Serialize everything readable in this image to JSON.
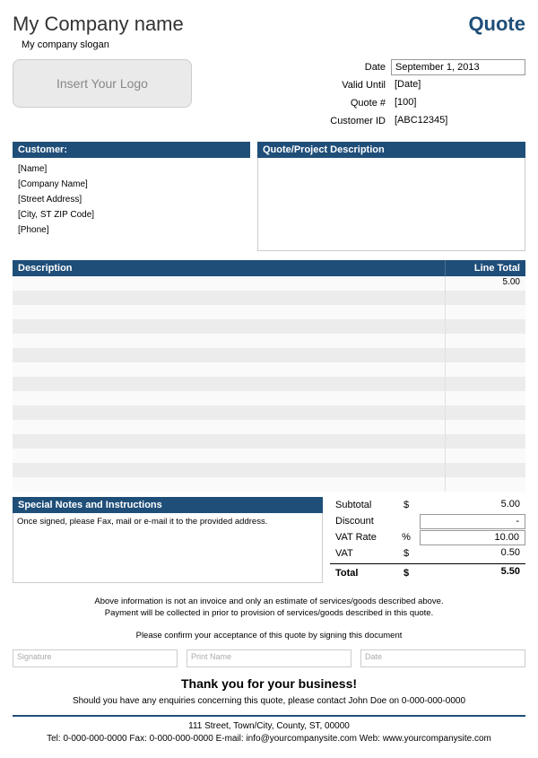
{
  "header": {
    "company_name": "My Company name",
    "slogan": "My company slogan",
    "quote_title": "Quote",
    "logo_placeholder": "Insert Your Logo"
  },
  "meta": {
    "date_label": "Date",
    "date_value": "September 1, 2013",
    "valid_label": "Valid Until",
    "valid_value": "[Date]",
    "quoteno_label": "Quote #",
    "quoteno_value": "[100]",
    "custid_label": "Customer ID",
    "custid_value": "[ABC12345]"
  },
  "customer": {
    "header": "Customer:",
    "name": "[Name]",
    "company": "[Company Name]",
    "street": "[Street Address]",
    "cityzip": "[City, ST  ZIP Code]",
    "phone": "[Phone]"
  },
  "project": {
    "header": "Quote/Project Description"
  },
  "items": {
    "desc_header": "Description",
    "total_header": "Line Total",
    "rows": [
      {
        "desc": "",
        "total": "5.00"
      },
      {
        "desc": "",
        "total": ""
      },
      {
        "desc": "",
        "total": ""
      },
      {
        "desc": "",
        "total": ""
      },
      {
        "desc": "",
        "total": ""
      },
      {
        "desc": "",
        "total": ""
      },
      {
        "desc": "",
        "total": ""
      },
      {
        "desc": "",
        "total": ""
      },
      {
        "desc": "",
        "total": ""
      },
      {
        "desc": "",
        "total": ""
      },
      {
        "desc": "",
        "total": ""
      },
      {
        "desc": "",
        "total": ""
      },
      {
        "desc": "",
        "total": ""
      },
      {
        "desc": "",
        "total": ""
      },
      {
        "desc": "",
        "total": ""
      }
    ]
  },
  "notes": {
    "header": "Special Notes and Instructions",
    "body": "Once signed, please Fax, mail or e-mail it to the provided address."
  },
  "totals": {
    "subtotal_label": "Subtotal",
    "subtotal_sym": "$",
    "subtotal_val": "5.00",
    "discount_label": "Discount",
    "discount_sym": "",
    "discount_val": "-",
    "vatrate_label": "VAT Rate",
    "vatrate_sym": "%",
    "vatrate_val": "10.00",
    "vat_label": "VAT",
    "vat_sym": "$",
    "vat_val": "0.50",
    "total_label": "Total",
    "total_sym": "$",
    "total_val": "5.50"
  },
  "disclaimer": {
    "line1": "Above information is not an invoice and only an estimate of services/goods described above.",
    "line2": "Payment will be collected in prior to provision of services/goods described in this quote."
  },
  "confirm": "Please confirm your acceptance of this quote by signing this document",
  "sig": {
    "signature": "Signature",
    "printname": "Print Name",
    "date": "Date"
  },
  "thanks": "Thank you for your business!",
  "enquiry": "Should you have any enquiries concerning this quote, please contact John Doe on 0-000-000-0000",
  "footer": {
    "addr": "111 Street, Town/City, County, ST, 00000",
    "contact": "Tel: 0-000-000-0000 Fax: 0-000-000-0000 E-mail: info@yourcompanysite.com Web: www.yourcompanysite.com"
  },
  "colors": {
    "primary": "#1f4e79"
  }
}
